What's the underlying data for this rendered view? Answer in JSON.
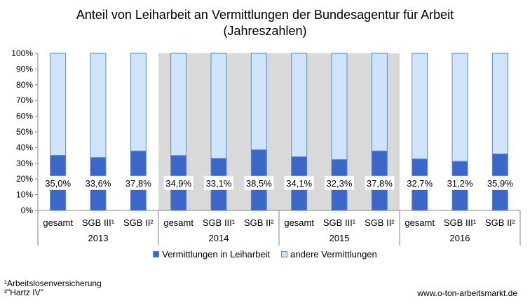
{
  "title_line1": "Anteil von Leiharbeit an Vermittlungen der Bundesagentur für Arbeit",
  "title_line2": "(Jahreszahlen)",
  "legend": [
    {
      "label": "Vermittlungen in Leiharbeit",
      "color": "#3a67c9"
    },
    {
      "label": "andere Vermittlungen",
      "color": "#cfe3f9"
    }
  ],
  "footnote1": "¹Arbeitslosenversicherung",
  "footnote2": "²\"Hartz IV\"",
  "source": "www.o-ton-arbeitsmarkt.de",
  "colors": {
    "leih": "#3a67c9",
    "andere": "#cfe3f9",
    "band": "#d9d9d9",
    "bar_border": "#5a8bc8"
  },
  "chart_data": {
    "type": "bar",
    "stacked": true,
    "percent": true,
    "ylim": [
      0,
      100
    ],
    "y_ticks": [
      "0%",
      "10%",
      "20%",
      "30%",
      "40%",
      "50%",
      "60%",
      "70%",
      "80%",
      "90%",
      "100%"
    ],
    "groups": [
      {
        "year": "2013",
        "shaded": false,
        "categories": [
          "gesamt",
          "SGB III¹",
          "SGB II²"
        ],
        "values": [
          35.0,
          33.6,
          37.8
        ],
        "labels": [
          "35,0%",
          "33,6%",
          "37,8%"
        ]
      },
      {
        "year": "2014",
        "shaded": true,
        "categories": [
          "gesamt",
          "SGB III¹",
          "SGB II²"
        ],
        "values": [
          34.9,
          33.1,
          38.5
        ],
        "labels": [
          "34,9%",
          "33,1%",
          "38,5%"
        ]
      },
      {
        "year": "2015",
        "shaded": true,
        "categories": [
          "gesamt",
          "SGB III¹",
          "SGB II²"
        ],
        "values": [
          34.1,
          32.3,
          37.8
        ],
        "labels": [
          "34,1%",
          "32,3%",
          "37,8%"
        ]
      },
      {
        "year": "2016",
        "shaded": false,
        "categories": [
          "gesamt",
          "SGB III¹",
          "SGB II²"
        ],
        "values": [
          32.7,
          31.2,
          35.9
        ],
        "labels": [
          "32,7%",
          "31,2%",
          "35,9%"
        ]
      }
    ],
    "series": [
      {
        "name": "Vermittlungen in Leiharbeit"
      },
      {
        "name": "andere Vermittlungen"
      }
    ]
  }
}
